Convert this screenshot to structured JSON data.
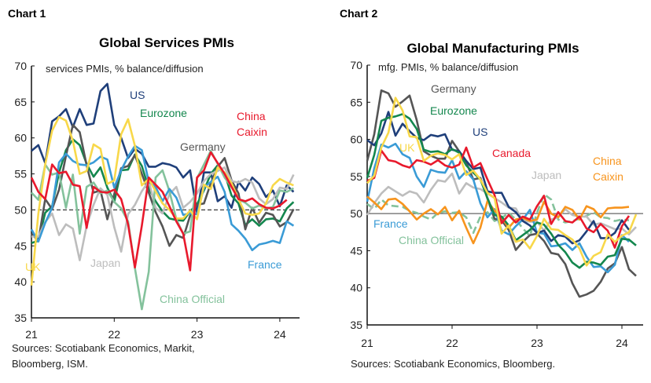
{
  "chart_data": [
    {
      "type": "line",
      "header": "Chart 1",
      "title": "Global Services PMIs",
      "subtitle": "services PMIs, % balance/diffusion",
      "source": [
        "Sources: Scotiabank Economics, Markit,",
        "Bloomberg, ISM."
      ],
      "x_start": "2021-01",
      "x_frequency": "monthly",
      "xticks": [
        "21",
        "22",
        "23",
        "24"
      ],
      "ylim": [
        35,
        70
      ],
      "yticks": [
        35,
        40,
        45,
        50,
        55,
        60,
        65,
        70
      ],
      "reference_line": {
        "y": 50,
        "style": "dashed"
      },
      "grid": false,
      "series": [
        {
          "name": "US",
          "color": "#1f3f7a",
          "values": [
            58.2,
            59,
            56.5,
            62.3,
            63,
            64,
            61.5,
            64,
            61.8,
            62,
            66.5,
            67.5,
            61.8,
            60,
            57.2,
            58.5,
            57.8,
            56,
            56,
            56.5,
            56.3,
            55.9,
            54.5,
            55.5,
            49.6,
            55.2,
            55.2,
            51.2,
            51.9,
            50.3,
            53.9,
            52.7,
            54.5,
            53.6,
            51.8,
            52.7,
            50.5,
            53.4,
            52.5
          ]
        },
        {
          "name": "Eurozone",
          "color": "#14874e",
          "values": [
            45.4,
            45.7,
            49.6,
            50.5,
            55.2,
            58.3,
            59.8,
            59,
            56.4,
            54.6,
            55.9,
            53.1,
            51.1,
            55.5,
            55.6,
            57.7,
            56.1,
            53,
            51.2,
            49.8,
            48.8,
            48.6,
            48.5,
            49.8,
            50.8,
            52.7,
            55,
            56.2,
            55.1,
            52,
            50.9,
            47.9,
            48.7,
            47.8,
            48.7,
            48.8,
            48.4,
            50.2,
            51.1
          ]
        },
        {
          "name": "Germany",
          "color": "#555555",
          "values": [
            46.7,
            45.7,
            51.5,
            50.1,
            52.8,
            57.5,
            61.8,
            60.8,
            56.2,
            52.4,
            52.7,
            48.7,
            52.2,
            55.8,
            56.1,
            57.6,
            55,
            52.4,
            49.7,
            47.7,
            45,
            46.5,
            46.1,
            49.2,
            50.7,
            50.9,
            53.7,
            56,
            57.2,
            54.1,
            52.3,
            47.3,
            50.3,
            48.2,
            49.6,
            49.3,
            47.7,
            48.3,
            50.1
          ]
        },
        {
          "name": "Japan",
          "color": "#bdbdbd",
          "values": [
            46.3,
            46.3,
            48.3,
            49.5,
            46.5,
            48,
            47.4,
            43,
            47.8,
            50.7,
            53,
            52.1,
            47.6,
            44.2,
            49.4,
            50.7,
            52.6,
            54,
            50.3,
            49.5,
            52.2,
            53.2,
            50.3,
            51.1,
            52.3,
            54,
            55,
            55.4,
            55.9,
            54,
            53.8,
            54.3,
            53.8,
            51.6,
            50.8,
            51.5,
            53.1,
            52.9,
            54.9
          ]
        },
        {
          "name": "China Official",
          "color": "#84c29c",
          "values": [
            52.4,
            51.4,
            56.3,
            54.9,
            55.2,
            50.3,
            54.9,
            46.7,
            53.2,
            53.8,
            52.3,
            52.7,
            51.1,
            50.2,
            48.4,
            41.9,
            36.2,
            41.4,
            54.5,
            55.5,
            52.6,
            48.7,
            46.7,
            47,
            54.4,
            56.3,
            58.2,
            56.4,
            54.5,
            53.2,
            51.5,
            51,
            50.2,
            50.6,
            50.2,
            50.4,
            52.7,
            52.5,
            53
          ]
        },
        {
          "name": "France",
          "color": "#3a9bd6",
          "values": [
            47.3,
            45.6,
            48.2,
            50.3,
            56.6,
            57.8,
            56.8,
            56.3,
            56.2,
            56.6,
            57.4,
            57,
            53.1,
            55.5,
            57.4,
            58.9,
            58.3,
            53.9,
            53.2,
            51.2,
            52.9,
            51.7,
            49.3,
            49.5,
            49.4,
            53.1,
            53.9,
            54.6,
            52.5,
            48,
            47.1,
            46,
            44.4,
            45.2,
            45.4,
            45.7,
            45.4,
            48.4,
            47.8
          ]
        },
        {
          "name": "UK",
          "color": "#f8d84a",
          "values": [
            39.5,
            49.5,
            56.3,
            61,
            62.9,
            62.4,
            59.6,
            55,
            55.4,
            59.1,
            58.5,
            53.6,
            54.1,
            60.5,
            62.6,
            58.9,
            53.4,
            54.3,
            52.6,
            50.9,
            50,
            48.8,
            48.8,
            49.9,
            48.7,
            53.5,
            52.9,
            55.9,
            55.2,
            53.7,
            51.5,
            49.5,
            49.3,
            49.5,
            50.9,
            53.4,
            54.3,
            53.8,
            53.4
          ]
        },
        {
          "name": "China Caixin",
          "color": "#e8192c",
          "values": [
            54.5,
            52.5,
            51.5,
            56.3,
            55.1,
            55.3,
            53.5,
            53.3,
            47.5,
            53.2,
            52.5,
            52.4,
            52.8,
            51.5,
            48,
            42,
            47.8,
            54.5,
            53.5,
            52.5,
            50.5,
            48.4,
            46.7,
            41.6,
            54.5,
            55.5,
            58,
            56.5,
            55,
            53.2,
            51.5,
            51.2,
            51.6,
            50.8,
            50.3,
            50.2,
            50.6,
            51.4
          ]
        }
      ]
    },
    {
      "type": "line",
      "header": "Chart 2",
      "title": "Global Manufacturing PMIs",
      "subtitle": "mfg. PMIs, % balance/diffusion",
      "source": [
        "Sources: Scotiabank Economics, Bloomberg."
      ],
      "x_start": "2021-01",
      "x_frequency": "monthly",
      "xticks": [
        "21",
        "22",
        "23",
        "24"
      ],
      "ylim": [
        35,
        70
      ],
      "yticks": [
        35,
        40,
        45,
        50,
        55,
        60,
        65,
        70
      ],
      "reference_line": {
        "y": 50,
        "style": "solid"
      },
      "grid": false,
      "series": [
        {
          "name": "China Official",
          "color": "#84c29c",
          "dashed": true,
          "values": [
            51.3,
            50.6,
            51.9,
            51.1,
            51,
            50.9,
            50.4,
            50.1,
            49.6,
            49.2,
            50.1,
            50.3,
            50.1,
            50.2,
            49.5,
            47.4,
            49.6,
            50.2,
            49,
            49.4,
            50.1,
            49.2,
            48,
            47,
            50.1,
            52.6,
            51.9,
            49.2,
            48.8,
            49,
            49.3,
            49.7,
            50.2,
            49.5,
            49.4,
            49,
            49.2,
            49.1
          ]
        },
        {
          "name": "Japan",
          "color": "#bdbdbd",
          "values": [
            49.8,
            51.4,
            52.7,
            53.6,
            53,
            52.4,
            53,
            52.7,
            51.5,
            53.2,
            54.5,
            54.3,
            55.4,
            52.7,
            54.1,
            53.5,
            53.3,
            52.7,
            52.1,
            51.5,
            50.8,
            50.7,
            49,
            48.9,
            48.9,
            47.7,
            49.2,
            49.5,
            50.6,
            49.8,
            49.6,
            49.6,
            48.5,
            48.7,
            48.3,
            47.9,
            48,
            47.2,
            48.2
          ]
        },
        {
          "name": "Germany",
          "color": "#555555",
          "values": [
            57.1,
            60.7,
            66.6,
            66.2,
            64.4,
            65.1,
            65.9,
            62.6,
            58.4,
            57.8,
            57.4,
            57.4,
            59.8,
            58.4,
            56.9,
            54.6,
            54.8,
            52,
            49.3,
            49.1,
            47.8,
            45.1,
            46.2,
            47.1,
            47.3,
            46.3,
            44.7,
            44.5,
            43.2,
            40.6,
            38.8,
            39.1,
            39.6,
            40.8,
            42.6,
            43.3,
            45.5,
            42.5,
            41.6
          ]
        },
        {
          "name": "France",
          "color": "#3a9bd6",
          "values": [
            51.6,
            56.1,
            59.3,
            58.9,
            59.4,
            58,
            57.5,
            55,
            53.6,
            55.9,
            55.6,
            55.5,
            57.2,
            54.7,
            55.7,
            54.6,
            51.4,
            49.5,
            50.6,
            47.7,
            47.2,
            48.3,
            49.2,
            50.5,
            47.4,
            47.3,
            45.6,
            45.7,
            46,
            45.1,
            46,
            44.2,
            42.8,
            42.9,
            42.1,
            43.1,
            47.1,
            46.2
          ]
        },
        {
          "name": "China Caixin",
          "color": "#f7941d",
          "values": [
            52.3,
            51.5,
            50.6,
            51.9,
            52,
            51.3,
            50.3,
            49.2,
            50,
            50.6,
            49.9,
            50.9,
            49.1,
            50.4,
            48.1,
            46,
            48.1,
            51.7,
            50.4,
            49.5,
            48.1,
            49.2,
            49.4,
            49,
            49.2,
            51.6,
            50,
            49.5,
            50.9,
            50.5,
            49.2,
            51,
            50.6,
            49.5,
            50.7,
            50.8,
            50.8,
            50.9
          ]
        },
        {
          "name": "US",
          "color": "#1f3f7a",
          "values": [
            59.9,
            59.2,
            60.8,
            63.7,
            60.5,
            62.1,
            61.1,
            60.2,
            59.9,
            60.6,
            60.4,
            60.7,
            58.6,
            58.4,
            57.1,
            56,
            56.2,
            53,
            52.8,
            52.8,
            50.9,
            50.2,
            49,
            48.4,
            47.4,
            47.7,
            46.3,
            47.1,
            46.9,
            46,
            46.4,
            47.6,
            49,
            46.7,
            46.7,
            47.4,
            49.1,
            47.8
          ]
        },
        {
          "name": "Eurozone",
          "color": "#14874e",
          "values": [
            54.8,
            57.9,
            62.5,
            62.9,
            63.1,
            63.4,
            62.8,
            61.4,
            58.6,
            58.3,
            58.4,
            58,
            58.7,
            58.2,
            56.5,
            55.5,
            54.6,
            52.1,
            49.8,
            49.6,
            48.4,
            46.4,
            47.1,
            47.8,
            48.8,
            48.5,
            47.3,
            45.8,
            44.8,
            43.4,
            42.7,
            43.5,
            43.4,
            43.1,
            44.2,
            44.4,
            46.6,
            46.5,
            45.7
          ]
        },
        {
          "name": "Canada",
          "color": "#e8192c",
          "values": [
            54.4,
            54.8,
            58.5,
            57.2,
            57,
            56.5,
            56.2,
            57.2,
            57,
            56.6,
            57.2,
            56.5,
            56.2,
            56.6,
            58.9,
            56.2,
            56.8,
            54.6,
            52.5,
            48.7,
            49.8,
            48.8,
            49.6,
            49.2,
            51,
            52.4,
            48.6,
            50.2,
            49,
            48.8,
            49.6,
            48,
            47.5,
            48.6,
            47.7,
            45.4,
            48.3,
            49.7
          ]
        },
        {
          "name": "UK",
          "color": "#f8d84a",
          "values": [
            54.1,
            55.1,
            58.9,
            60.9,
            65.6,
            63.9,
            60.4,
            60.3,
            57.1,
            57.8,
            58.1,
            57.9,
            57.3,
            58,
            55.2,
            55.8,
            54.6,
            52.8,
            52.1,
            47.3,
            48.4,
            46.2,
            46.5,
            45.3,
            47,
            49.3,
            47.9,
            47.8,
            47.1,
            46.5,
            45.3,
            43,
            44.3,
            44.8,
            47.2,
            46.2,
            47,
            47.5,
            49.9
          ]
        }
      ]
    }
  ]
}
